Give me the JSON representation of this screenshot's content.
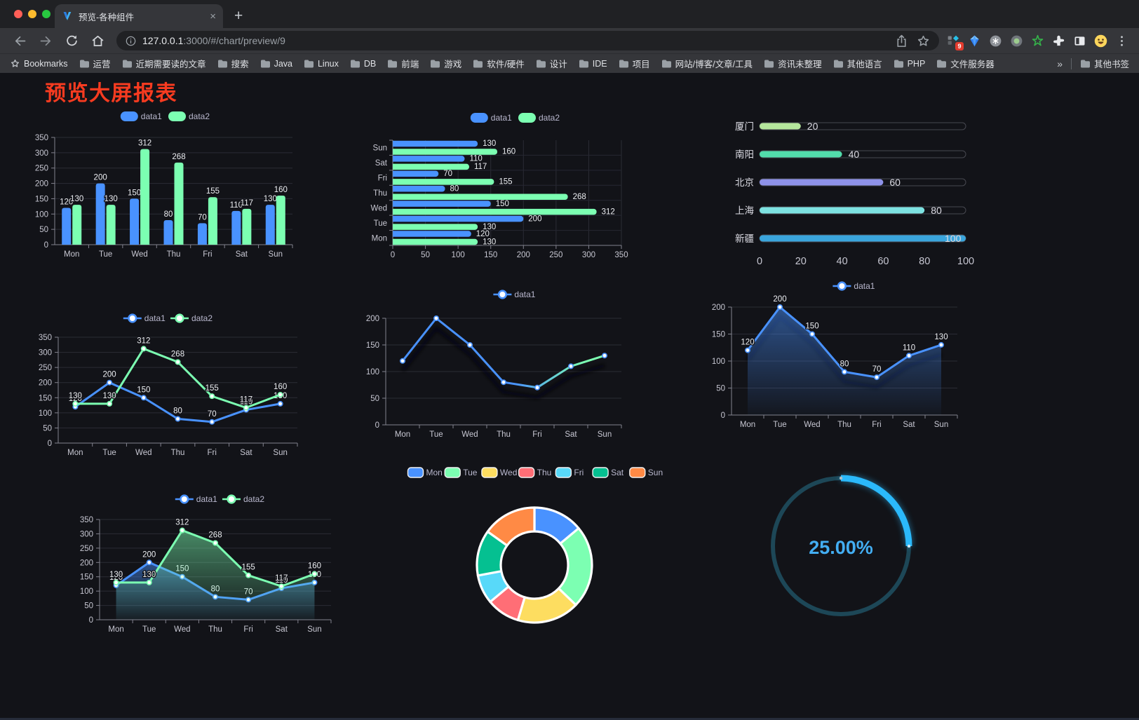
{
  "browser": {
    "tab": {
      "title": "预览-各种组件",
      "close_label": "×"
    },
    "new_tab_label": "+",
    "address": {
      "host": "127.0.0.1",
      "path": ":3000/#/chart/preview/9"
    },
    "extension_badge": "9",
    "bookmarks": {
      "label": "Bookmarks",
      "folders": [
        "运营",
        "近期需要读的文章",
        "搜索",
        "Java",
        "Linux",
        "DB",
        "前端",
        "游戏",
        "软件/硬件",
        "设计",
        "IDE",
        "项目",
        "网站/博客/文章/工具",
        "资讯未整理",
        "其他语言",
        "PHP",
        "文件服务器"
      ],
      "overflow": "»",
      "other_bookmarks": "其他书签"
    }
  },
  "page": {
    "title": "预览大屏报表",
    "title_color": "#f83b20",
    "background": "#121318"
  },
  "chart_data": [
    {
      "id": "grouped-bar",
      "type": "bar",
      "legend": [
        "data1",
        "data2"
      ],
      "categories": [
        "Mon",
        "Tue",
        "Wed",
        "Thu",
        "Fri",
        "Sat",
        "Sun"
      ],
      "series": [
        {
          "name": "data1",
          "color": "#4992ff",
          "values": [
            120,
            200,
            150,
            80,
            70,
            110,
            130
          ]
        },
        {
          "name": "data2",
          "color": "#7cffb2",
          "values": [
            130,
            130,
            312,
            268,
            155,
            117,
            160
          ]
        }
      ],
      "ylim": [
        0,
        350
      ],
      "yticks": [
        0,
        50,
        100,
        150,
        200,
        250,
        300,
        350
      ],
      "show_labels": true
    },
    {
      "id": "grouped-horizontal-bar",
      "type": "hbar",
      "legend": [
        "data1",
        "data2"
      ],
      "categories_top_to_bottom": [
        "Sun",
        "Sat",
        "Fri",
        "Thu",
        "Wed",
        "Tue",
        "Mon"
      ],
      "series": [
        {
          "name": "data1",
          "color": "#4992ff",
          "values_top_to_bottom": [
            130,
            110,
            70,
            80,
            150,
            200,
            120
          ]
        },
        {
          "name": "data2",
          "color": "#7cffb2",
          "values_top_to_bottom": [
            160,
            117,
            155,
            268,
            312,
            130,
            130
          ]
        }
      ],
      "xlim": [
        0,
        350
      ],
      "xticks": [
        0,
        50,
        100,
        150,
        200,
        250,
        300,
        350
      ],
      "show_labels": true
    },
    {
      "id": "city-progress",
      "type": "progress",
      "max": 100,
      "xticks": [
        0,
        20,
        40,
        60,
        80,
        100
      ],
      "rows": [
        {
          "label": "厦门",
          "value": 20,
          "color": "#b5e79c"
        },
        {
          "label": "南阳",
          "value": 40,
          "color": "#52dcab"
        },
        {
          "label": "北京",
          "value": 60,
          "color": "#8e92e9"
        },
        {
          "label": "上海",
          "value": 80,
          "color": "#7de2e1"
        },
        {
          "label": "新疆",
          "value": 100,
          "color": "#3aa5dc"
        }
      ]
    },
    {
      "id": "two-series-line",
      "type": "line",
      "legend": [
        "data1",
        "data2"
      ],
      "categories": [
        "Mon",
        "Tue",
        "Wed",
        "Thu",
        "Fri",
        "Sat",
        "Sun"
      ],
      "series": [
        {
          "name": "data1",
          "color": "#4992ff",
          "values": [
            120,
            200,
            150,
            80,
            70,
            110,
            130
          ]
        },
        {
          "name": "data2",
          "color": "#7cffb2",
          "values": [
            130,
            130,
            312,
            268,
            155,
            117,
            160
          ]
        }
      ],
      "ylim": [
        0,
        350
      ],
      "yticks": [
        0,
        50,
        100,
        150,
        200,
        250,
        300,
        350
      ],
      "show_labels": true
    },
    {
      "id": "gradient-line",
      "type": "line",
      "legend": [
        "data1"
      ],
      "categories": [
        "Mon",
        "Tue",
        "Wed",
        "Thu",
        "Fri",
        "Sat",
        "Sun"
      ],
      "series": [
        {
          "name": "data1",
          "color": "#4992ff",
          "gradient_to": "#7cffb2",
          "values": [
            120,
            200,
            150,
            80,
            70,
            110,
            130
          ]
        }
      ],
      "ylim": [
        0,
        200
      ],
      "yticks": [
        0,
        50,
        100,
        150,
        200
      ],
      "show_labels": false,
      "shadow": true
    },
    {
      "id": "area-line",
      "type": "line",
      "legend": [
        "data1"
      ],
      "categories": [
        "Mon",
        "Tue",
        "Wed",
        "Thu",
        "Fri",
        "Sat",
        "Sun"
      ],
      "series": [
        {
          "name": "data1",
          "color": "#4992ff",
          "area": true,
          "values": [
            120,
            200,
            150,
            80,
            70,
            110,
            130
          ]
        }
      ],
      "ylim": [
        0,
        200
      ],
      "yticks": [
        0,
        50,
        100,
        150,
        200
      ],
      "show_labels": true,
      "shadow": true
    },
    {
      "id": "two-series-area-line",
      "type": "line",
      "legend": [
        "data1",
        "data2"
      ],
      "categories": [
        "Mon",
        "Tue",
        "Wed",
        "Thu",
        "Fri",
        "Sat",
        "Sun"
      ],
      "series": [
        {
          "name": "data1",
          "color": "#4992ff",
          "area": true,
          "values": [
            120,
            200,
            150,
            80,
            70,
            110,
            130
          ]
        },
        {
          "name": "data2",
          "color": "#7cffb2",
          "area": true,
          "values": [
            130,
            130,
            312,
            268,
            155,
            117,
            160
          ]
        }
      ],
      "ylim": [
        0,
        350
      ],
      "yticks": [
        0,
        50,
        100,
        150,
        200,
        250,
        300,
        350
      ],
      "show_labels": true
    },
    {
      "id": "weekday-donut",
      "type": "donut",
      "categories": [
        "Mon",
        "Tue",
        "Wed",
        "Thu",
        "Fri",
        "Sat",
        "Sun"
      ],
      "values": [
        120,
        200,
        150,
        80,
        70,
        110,
        130
      ],
      "colors": [
        "#4992ff",
        "#7cffb2",
        "#fddd60",
        "#ff6e76",
        "#58d9f9",
        "#05c091",
        "#ff8a45"
      ]
    },
    {
      "id": "percent-gauge",
      "type": "gauge",
      "value_text": "25.00%",
      "percent": 25,
      "color": "#2bb9fb",
      "track_color": "#1d4757",
      "text_color": "#43aef3"
    }
  ]
}
